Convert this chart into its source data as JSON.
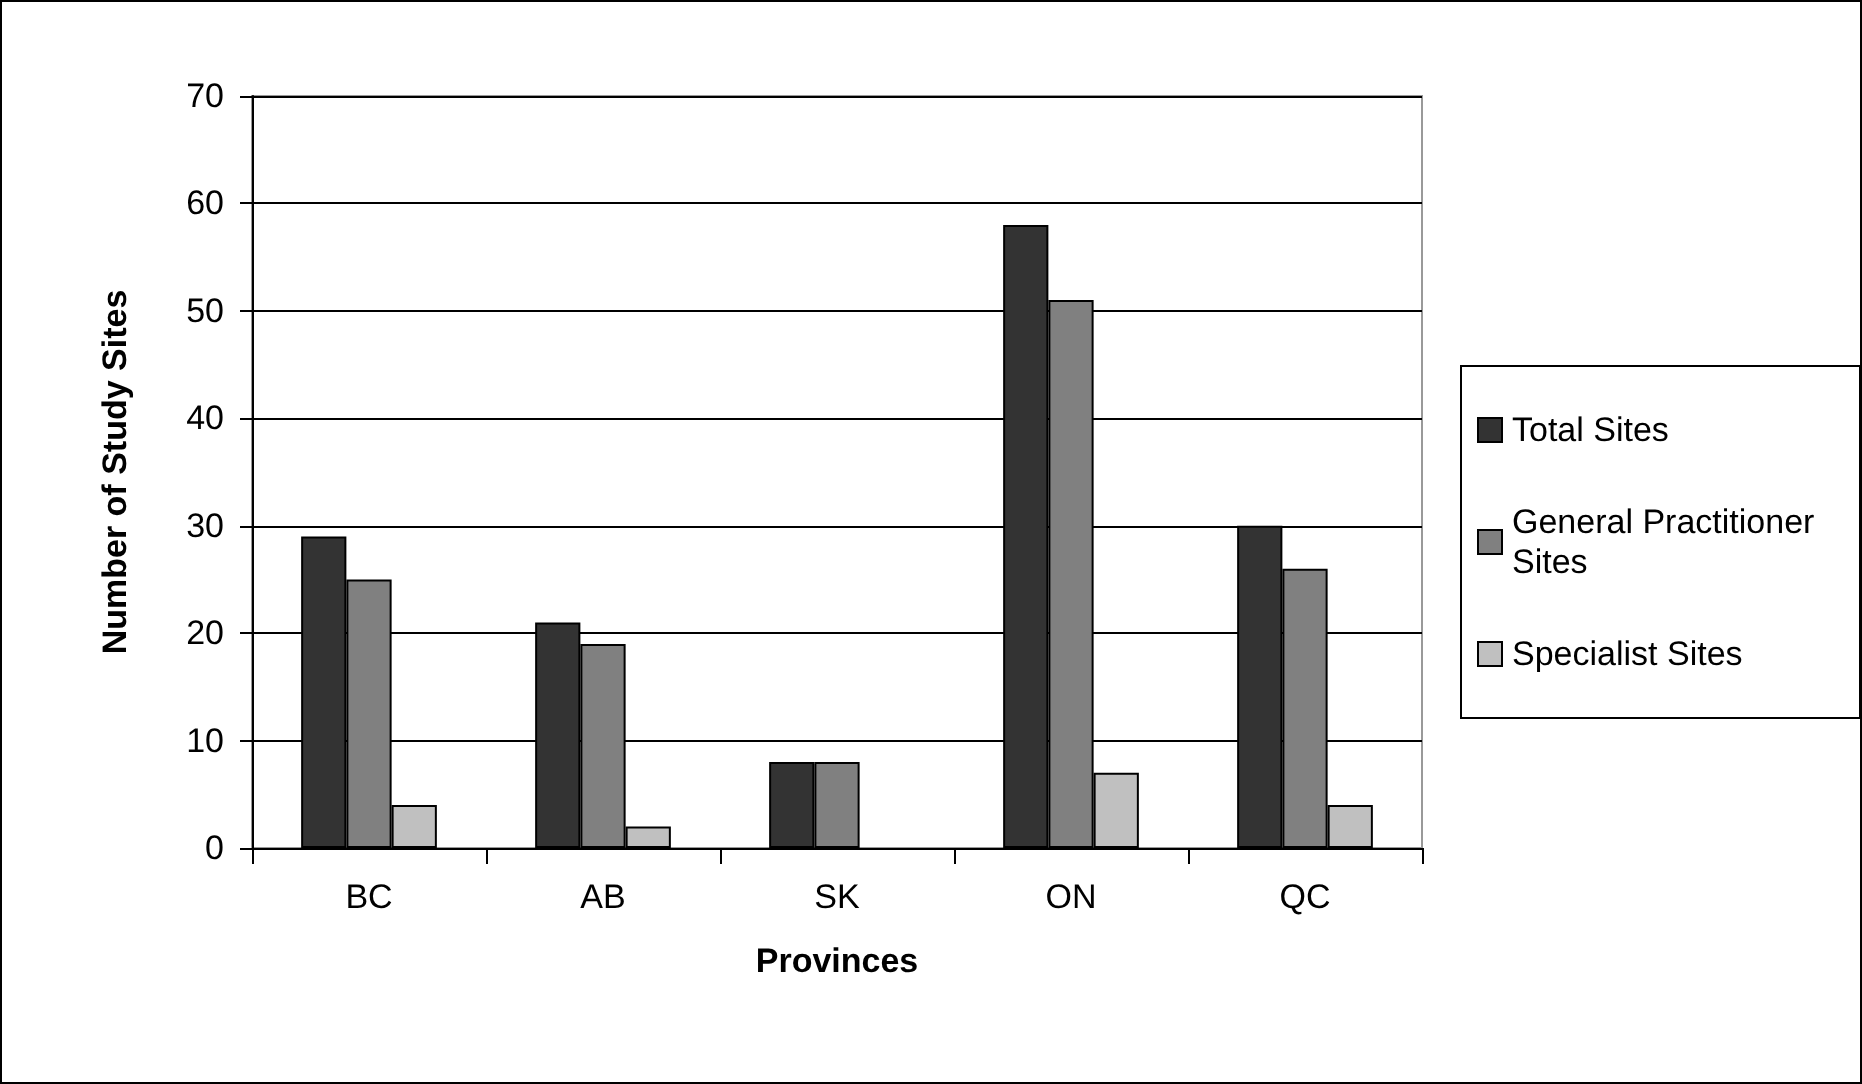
{
  "chart_data": {
    "type": "bar",
    "xlabel": "Provinces",
    "ylabel": "Number of Study Sites",
    "categories": [
      "BC",
      "AB",
      "SK",
      "ON",
      "QC"
    ],
    "series": [
      {
        "name": "Total Sites",
        "color": "#333333",
        "values": [
          29,
          21,
          8,
          58,
          30
        ]
      },
      {
        "name": "General Practitioner Sites",
        "color": "#808080",
        "values": [
          25,
          19,
          8,
          51,
          26
        ]
      },
      {
        "name": "Specialist Sites",
        "color": "#c0c0c0",
        "values": [
          4,
          2,
          0,
          7,
          4
        ]
      }
    ],
    "ylim": [
      0,
      70
    ],
    "yticks": [
      0,
      10,
      20,
      30,
      40,
      50,
      60,
      70
    ],
    "grid": "y",
    "legend": "right"
  }
}
